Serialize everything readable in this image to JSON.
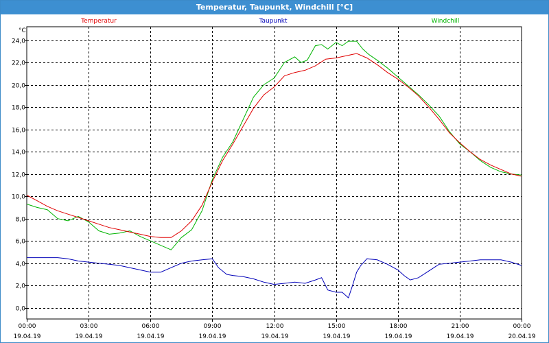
{
  "window": {
    "title": "Temperatur, Taupunkt, Windchill [°C]"
  },
  "chart_data": {
    "type": "line",
    "title": "Temperatur, Taupunkt, Windchill [°C]",
    "ylabel": "°C",
    "ylim": [
      -1,
      25.2
    ],
    "yticks": [
      0,
      2,
      4,
      6,
      8,
      10,
      12,
      14,
      16,
      18,
      20,
      22,
      24
    ],
    "ytick_labels": [
      "0,0",
      "2,0",
      "4,0",
      "6,0",
      "8,0",
      "10,0",
      "12,0",
      "14,0",
      "16,0",
      "18,0",
      "20,0",
      "22,0",
      "24,0"
    ],
    "xlim": [
      0,
      24
    ],
    "xticks": [
      0,
      3,
      6,
      9,
      12,
      15,
      18,
      21,
      24
    ],
    "xtick_times": [
      "00:00",
      "03:00",
      "06:00",
      "09:00",
      "12:00",
      "15:00",
      "18:00",
      "21:00",
      "00:00"
    ],
    "xtick_dates": [
      "19.04.19",
      "19.04.19",
      "19.04.19",
      "19.04.19",
      "19.04.19",
      "19.04.19",
      "19.04.19",
      "19.04.19",
      "20.04.19"
    ],
    "grid": true,
    "legend_placement": "top",
    "series": [
      {
        "name": "Temperatur",
        "color": "#e00000",
        "x": [
          0,
          0.5,
          1,
          1.5,
          2,
          2.5,
          3,
          3.5,
          4,
          4.5,
          5,
          5.5,
          6,
          6.5,
          7,
          7.5,
          8,
          8.5,
          9,
          9.5,
          10,
          10.5,
          11,
          11.5,
          12,
          12.5,
          13,
          13.5,
          14,
          14.5,
          15,
          15.5,
          16,
          16.5,
          17,
          17.5,
          18,
          18.5,
          19,
          19.5,
          20,
          20.5,
          21,
          21.5,
          22,
          22.5,
          23,
          23.5,
          24
        ],
        "values": [
          10.1,
          9.6,
          9.1,
          8.7,
          8.4,
          8.1,
          7.8,
          7.5,
          7.2,
          7.0,
          6.8,
          6.6,
          6.4,
          6.3,
          6.3,
          6.9,
          7.8,
          9.2,
          11.3,
          13.2,
          14.7,
          16.3,
          17.9,
          19.1,
          19.8,
          20.8,
          21.1,
          21.3,
          21.7,
          22.3,
          22.4,
          22.6,
          22.8,
          22.4,
          21.8,
          21.1,
          20.5,
          19.8,
          19.0,
          18.0,
          16.9,
          15.7,
          14.8,
          14.0,
          13.3,
          12.8,
          12.4,
          12.0,
          11.8
        ]
      },
      {
        "name": "Taupunkt",
        "color": "#0000b8",
        "x": [
          0,
          0.5,
          1,
          1.5,
          2,
          2.5,
          3,
          3.5,
          4,
          4.5,
          5,
          5.5,
          6,
          6.5,
          7,
          7.5,
          8,
          8.5,
          9,
          9.3,
          9.7,
          10,
          10.5,
          11,
          11.5,
          12,
          12.5,
          13,
          13.5,
          14,
          14.3,
          14.6,
          15,
          15.3,
          15.6,
          15.8,
          16,
          16.2,
          16.5,
          17,
          17.5,
          18,
          18.3,
          18.6,
          19,
          19.5,
          20,
          20.5,
          21,
          21.5,
          22,
          22.5,
          23,
          23.5,
          24
        ],
        "values": [
          4.5,
          4.5,
          4.5,
          4.5,
          4.4,
          4.2,
          4.1,
          4.0,
          3.9,
          3.8,
          3.6,
          3.4,
          3.2,
          3.2,
          3.6,
          4.0,
          4.2,
          4.3,
          4.4,
          3.6,
          3.0,
          2.9,
          2.8,
          2.6,
          2.3,
          2.1,
          2.2,
          2.3,
          2.2,
          2.5,
          2.7,
          1.6,
          1.4,
          1.4,
          0.9,
          2.0,
          3.2,
          3.8,
          4.4,
          4.3,
          3.9,
          3.4,
          2.9,
          2.5,
          2.7,
          3.3,
          3.9,
          4.0,
          4.1,
          4.2,
          4.3,
          4.3,
          4.3,
          4.1,
          3.8
        ]
      },
      {
        "name": "Windchill",
        "color": "#00b400",
        "x": [
          0,
          0.5,
          1,
          1.5,
          2,
          2.5,
          3,
          3.5,
          4,
          4.5,
          5,
          5.5,
          6,
          6.5,
          7,
          7.5,
          8,
          8.5,
          9,
          9.5,
          10,
          10.5,
          11,
          11.5,
          12,
          12.5,
          13,
          13.3,
          13.6,
          14,
          14.3,
          14.6,
          15,
          15.3,
          15.6,
          16,
          16.3,
          16.6,
          17,
          17.5,
          18,
          18.5,
          19,
          19.5,
          20,
          20.5,
          21,
          21.5,
          22,
          22.5,
          23,
          23.5,
          24
        ],
        "values": [
          9.3,
          9.0,
          8.8,
          8.0,
          7.8,
          8.2,
          7.7,
          6.9,
          6.6,
          6.7,
          6.9,
          6.4,
          6.0,
          5.6,
          5.2,
          6.3,
          7.0,
          8.7,
          11.5,
          13.5,
          14.9,
          16.9,
          18.9,
          20.0,
          20.6,
          22.0,
          22.5,
          22.0,
          22.2,
          23.5,
          23.6,
          23.2,
          23.8,
          23.5,
          23.9,
          23.9,
          23.2,
          22.7,
          22.2,
          21.5,
          20.7,
          19.9,
          19.1,
          18.2,
          17.2,
          15.8,
          14.7,
          14.0,
          13.2,
          12.6,
          12.2,
          12.0,
          11.9
        ]
      }
    ]
  }
}
